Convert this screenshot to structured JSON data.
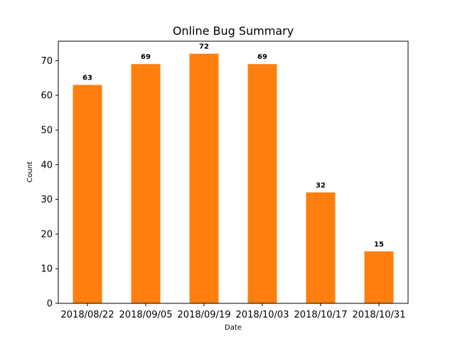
{
  "chart_data": {
    "type": "bar",
    "title": "Online Bug Summary",
    "xlabel": "Date",
    "ylabel": "Count",
    "categories": [
      "2018/08/22",
      "2018/09/05",
      "2018/09/19",
      "2018/10/03",
      "2018/10/17",
      "2018/10/31"
    ],
    "values": [
      63,
      69,
      72,
      69,
      32,
      15
    ],
    "ylim": [
      0,
      75.6
    ],
    "yticks": [
      0,
      10,
      20,
      30,
      40,
      50,
      60,
      70
    ],
    "bar_color": "#ff7f0e",
    "grid": false,
    "data_labels": true
  }
}
